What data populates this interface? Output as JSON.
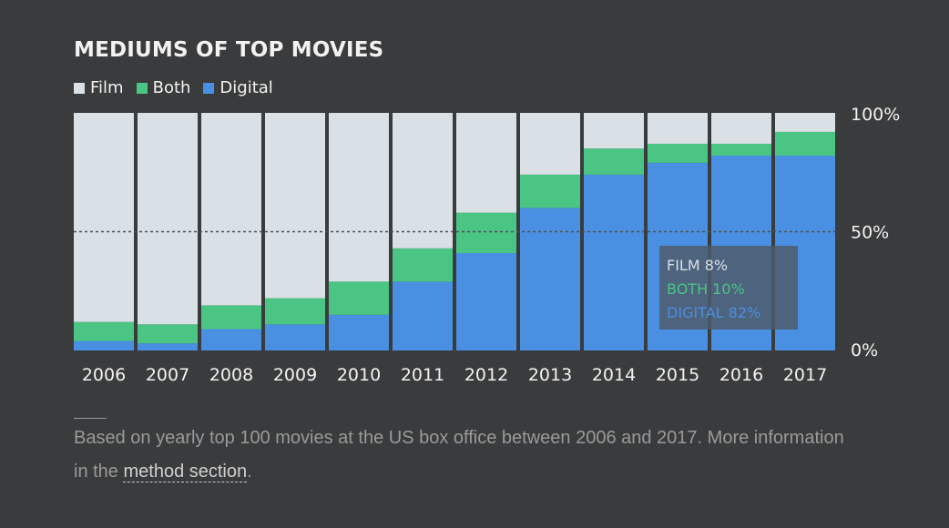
{
  "title": "MEDIUMS OF TOP MOVIES",
  "legend": [
    {
      "label": "Film",
      "color": "#d9e1e6"
    },
    {
      "label": "Both",
      "color": "#4bc584"
    },
    {
      "label": "Digital",
      "color": "#4a90e2"
    }
  ],
  "tooltip": {
    "film": "FILM 8%",
    "both": "BOTH 10%",
    "digital": "DIGITAL 82%"
  },
  "footnote": {
    "text_before": "Based on yearly top 100 movies at the US box office between 2006 and 2017. More information in the ",
    "link_text": "method section",
    "text_after": "."
  },
  "chart_data": {
    "type": "bar",
    "stacked": true,
    "title": "MEDIUMS OF TOP MOVIES",
    "categories": [
      "2006",
      "2007",
      "2008",
      "2009",
      "2010",
      "2011",
      "2012",
      "2013",
      "2014",
      "2015",
      "2016",
      "2017"
    ],
    "series": [
      {
        "name": "Digital",
        "color": "#4a90e2",
        "values": [
          4,
          3,
          9,
          11,
          15,
          29,
          41,
          60,
          74,
          79,
          82,
          82
        ]
      },
      {
        "name": "Both",
        "color": "#4bc584",
        "values": [
          8,
          8,
          10,
          11,
          14,
          14,
          17,
          14,
          11,
          8,
          5,
          10
        ]
      },
      {
        "name": "Film",
        "color": "#d9e1e6",
        "values": [
          88,
          89,
          81,
          78,
          71,
          57,
          42,
          26,
          15,
          13,
          13,
          8
        ]
      }
    ],
    "y_ticks": [
      "100%",
      "50%",
      "0%"
    ],
    "ylim": [
      0,
      100
    ],
    "reference_line": 50,
    "legend_position": "top-left"
  }
}
